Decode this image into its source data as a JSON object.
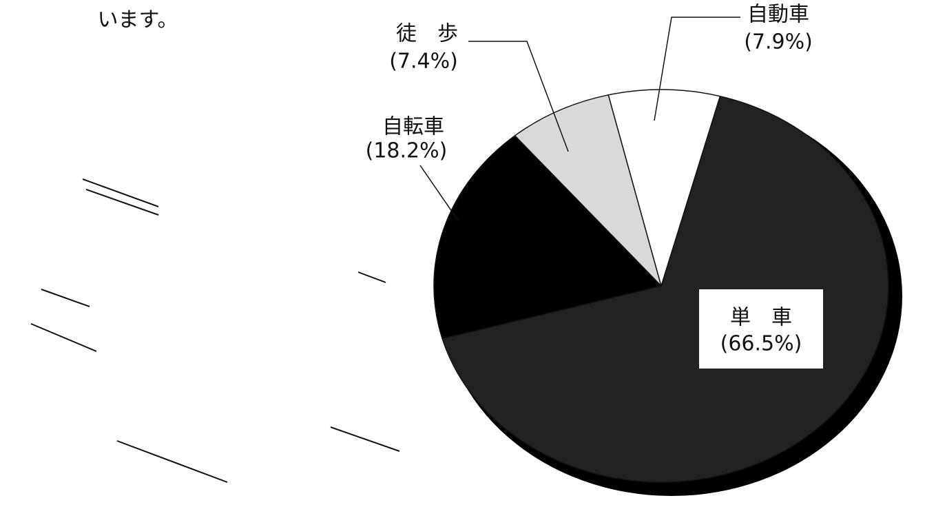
{
  "caption": "います。",
  "chart_data": {
    "type": "pie",
    "categories": [
      "単　車",
      "自転車",
      "徒　歩",
      "自動車"
    ],
    "values": [
      66.5,
      18.2,
      7.4,
      7.9
    ],
    "value_labels": [
      "(66.5%)",
      "(18.2%)",
      "(7.4%)",
      "(7.9%)"
    ],
    "colors": [
      "#222222",
      "#000000",
      "#d9d9d9",
      "#ffffff"
    ]
  }
}
